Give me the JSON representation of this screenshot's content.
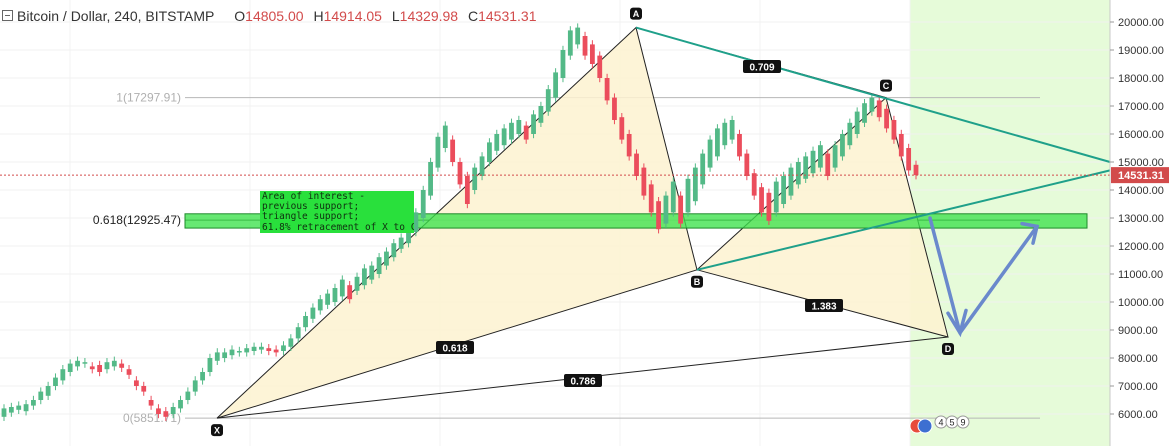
{
  "header": {
    "symbol": "Bitcoin / Dollar, 240, BITSTAMP",
    "open_label": "O",
    "open": "14805.00",
    "high_label": "H",
    "high": "14914.05",
    "low_label": "L",
    "low": "14329.98",
    "close_label": "C",
    "close": "14531.31"
  },
  "annotation": {
    "text": "Area of interest -\nprevious support;\ntriangle support;\n61.8% retracement of X to C"
  },
  "bottom_badges": [
    "4",
    "5",
    "9"
  ],
  "chart_data": {
    "type": "candlestick",
    "title": "Bitcoin / Dollar, 240, BITSTAMP",
    "ylim": [
      5500,
      20500
    ],
    "yticks": [
      6000,
      7000,
      8000,
      9000,
      10000,
      11000,
      12000,
      13000,
      14000,
      15000,
      16000,
      17000,
      18000,
      19000,
      20000
    ],
    "ytick_labels": [
      "6000.00",
      "7000.00",
      "8000.00",
      "9000.00",
      "10000.00",
      "11000.00",
      "12000.00",
      "13000.00",
      "14000.00",
      "15000.00",
      "16000.00",
      "17000.00",
      "18000.00",
      "19000.00",
      "20000.00"
    ],
    "last_price": 14531.31,
    "last_price_label": "14531.31",
    "fib_levels": [
      {
        "label": "1(17297.91)",
        "value": 17297.91
      },
      {
        "label": "0.618(12925.47)",
        "value": 12925.47
      },
      {
        "label": "0(5851.71)",
        "value": 5851.71
      }
    ],
    "support_zone": [
      12640,
      13150
    ],
    "pattern_points": [
      {
        "label": "X",
        "value": 5851.71
      },
      {
        "label": "A",
        "value": 19800
      },
      {
        "label": "B",
        "value": 11150
      },
      {
        "label": "C",
        "value": 17297.91
      },
      {
        "label": "D",
        "value": 8750
      }
    ],
    "ratios": [
      "0.618",
      "0.786",
      "0.709",
      "1.383"
    ],
    "trend_colors": {
      "bull": "#53b987",
      "bear": "#eb4d5c",
      "pattern_fill": "#fdf2d0",
      "triangle": "#1fa08a",
      "zone": "#3ce24c",
      "projection": "#6a89cc",
      "future": "#e6fbd9",
      "price_line": "#d24b4b"
    },
    "price_path": [
      [
        5900,
        6200
      ],
      [
        6050,
        6250
      ],
      [
        6150,
        6300
      ],
      [
        6100,
        6350
      ],
      [
        6300,
        6500
      ],
      [
        6500,
        6800
      ],
      [
        6650,
        7000
      ],
      [
        7000,
        7300
      ],
      [
        7200,
        7600
      ],
      [
        7500,
        7800
      ],
      [
        7700,
        7900
      ],
      [
        7800,
        7850
      ],
      [
        7600,
        7700
      ],
      [
        7500,
        7750
      ],
      [
        7600,
        7850
      ],
      [
        7700,
        7900
      ],
      [
        7650,
        7800
      ],
      [
        7400,
        7600
      ],
      [
        7000,
        7200
      ],
      [
        6800,
        7000
      ],
      [
        6300,
        6500
      ],
      [
        6000,
        6200
      ],
      [
        5900,
        6100
      ],
      [
        6000,
        6250
      ],
      [
        6200,
        6500
      ],
      [
        6500,
        6800
      ],
      [
        6800,
        7200
      ],
      [
        7200,
        7500
      ],
      [
        7500,
        8000
      ],
      [
        7900,
        8200
      ],
      [
        8000,
        8200
      ],
      [
        8100,
        8300
      ],
      [
        8200,
        8250
      ],
      [
        8200,
        8350
      ],
      [
        8250,
        8400
      ],
      [
        8300,
        8400
      ],
      [
        8250,
        8350
      ],
      [
        8200,
        8300
      ],
      [
        8250,
        8450
      ],
      [
        8400,
        8700
      ],
      [
        8700,
        9100
      ],
      [
        9100,
        9500
      ],
      [
        9400,
        9800
      ],
      [
        9700,
        10100
      ],
      [
        9900,
        10300
      ],
      [
        10000,
        10500
      ],
      [
        10200,
        10800
      ],
      [
        10100,
        10600
      ],
      [
        10400,
        10900
      ],
      [
        10600,
        11200
      ],
      [
        10800,
        11300
      ],
      [
        11000,
        11600
      ],
      [
        11300,
        11800
      ],
      [
        11600,
        12100
      ],
      [
        11900,
        12300
      ],
      [
        12100,
        12600
      ],
      [
        12500,
        13200
      ],
      [
        13000,
        14000
      ],
      [
        13800,
        15000
      ],
      [
        14800,
        15900
      ],
      [
        15500,
        16300
      ],
      [
        15000,
        15800
      ],
      [
        14200,
        15000
      ],
      [
        13500,
        14500
      ],
      [
        14000,
        14800
      ],
      [
        14500,
        15200
      ],
      [
        15000,
        15700
      ],
      [
        15400,
        16000
      ],
      [
        15600,
        16200
      ],
      [
        15800,
        16400
      ],
      [
        16000,
        16500
      ],
      [
        15800,
        16300
      ],
      [
        16000,
        16700
      ],
      [
        16400,
        17000
      ],
      [
        16800,
        17600
      ],
      [
        17300,
        18200
      ],
      [
        18000,
        19000
      ],
      [
        18800,
        19700
      ],
      [
        19200,
        19800
      ],
      [
        18800,
        19500
      ],
      [
        18500,
        19200
      ],
      [
        18000,
        18800
      ],
      [
        17200,
        18000
      ],
      [
        16500,
        17300
      ],
      [
        15800,
        16600
      ],
      [
        15200,
        16000
      ],
      [
        14500,
        15300
      ],
      [
        13800,
        14800
      ],
      [
        13200,
        14200
      ],
      [
        12600,
        13600
      ],
      [
        12800,
        13800
      ],
      [
        13200,
        14300
      ],
      [
        12800,
        13800
      ],
      [
        13200,
        14400
      ],
      [
        13600,
        14800
      ],
      [
        14200,
        15300
      ],
      [
        14800,
        15800
      ],
      [
        15200,
        16200
      ],
      [
        15600,
        16400
      ],
      [
        15800,
        16500
      ],
      [
        15200,
        16000
      ],
      [
        14500,
        15300
      ],
      [
        13800,
        14600
      ],
      [
        13200,
        14100
      ],
      [
        12900,
        13900
      ],
      [
        13200,
        14300
      ],
      [
        13500,
        14500
      ],
      [
        13800,
        14800
      ],
      [
        14200,
        15000
      ],
      [
        14400,
        15200
      ],
      [
        14600,
        15400
      ],
      [
        14800,
        15600
      ],
      [
        14500,
        15300
      ],
      [
        14800,
        15600
      ],
      [
        15200,
        16000
      ],
      [
        15600,
        16400
      ],
      [
        16000,
        16800
      ],
      [
        16400,
        17100
      ],
      [
        16800,
        17300
      ],
      [
        16600,
        17200
      ],
      [
        16200,
        16900
      ],
      [
        15800,
        16500
      ],
      [
        15200,
        16000
      ],
      [
        14700,
        15500
      ],
      [
        14531,
        14900
      ]
    ]
  }
}
